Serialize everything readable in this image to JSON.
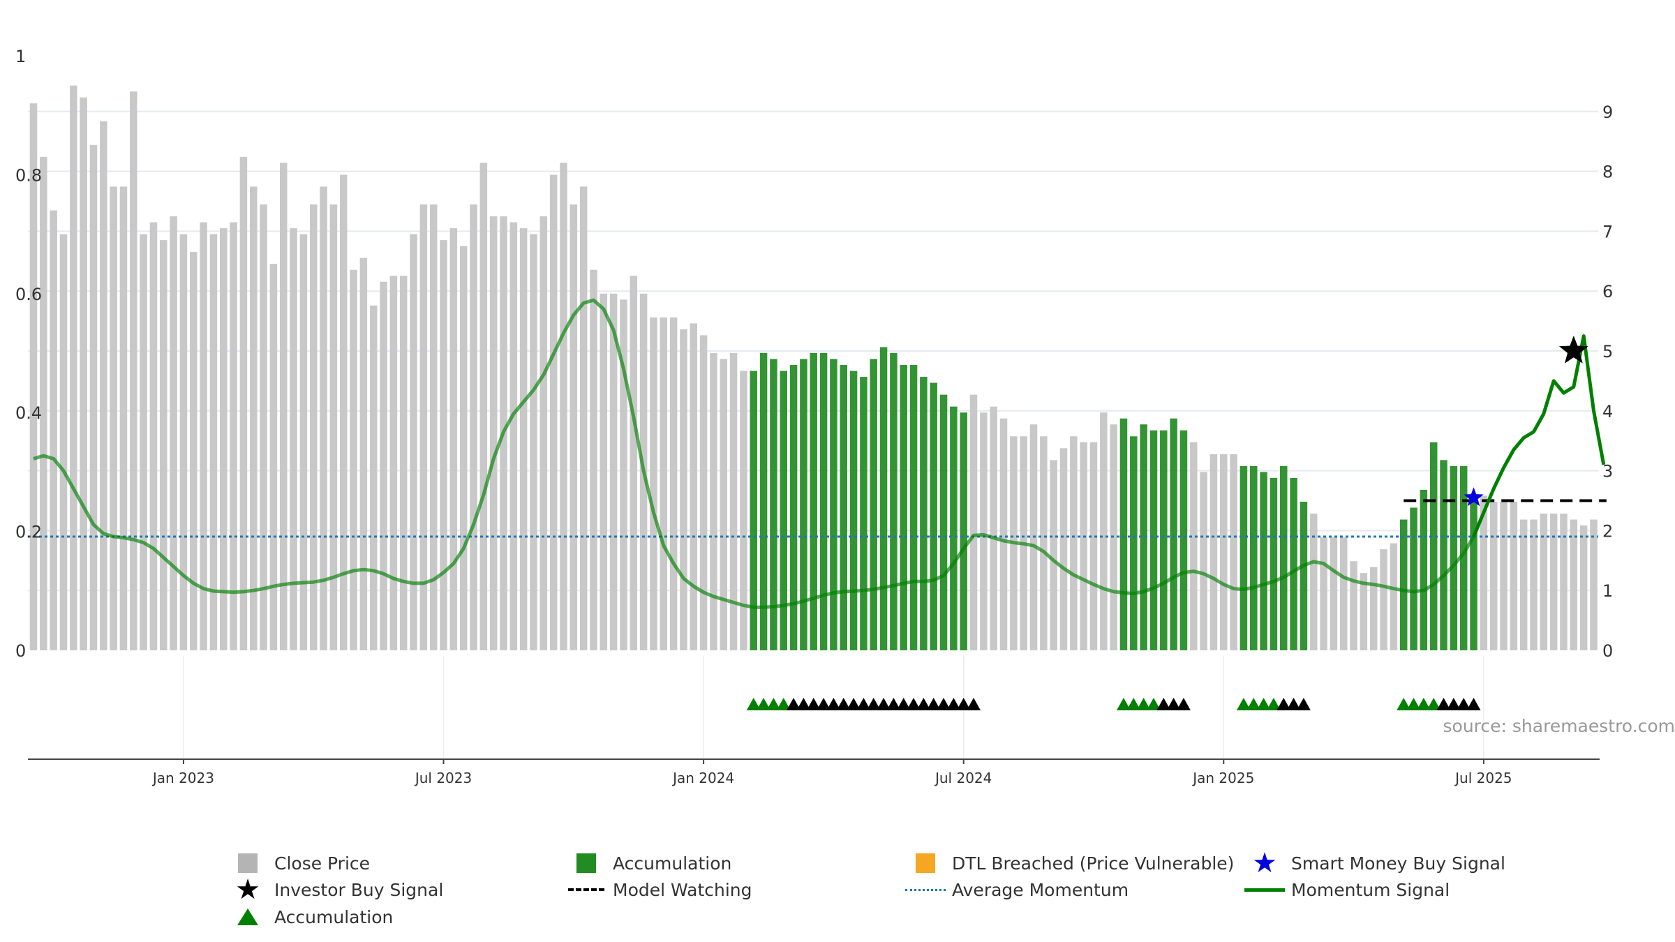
{
  "chart_data": {
    "type": "bar",
    "left_axis": {
      "ylim": [
        0,
        1
      ],
      "ticks": [
        "0",
        "0.2",
        "0.4",
        "0.6",
        "0.8",
        "1"
      ]
    },
    "right_axis": {
      "ylim": [
        0,
        9.9
      ],
      "ticks": [
        "0",
        "1",
        "2",
        "3",
        "4",
        "5",
        "6",
        "7",
        "8",
        "9"
      ]
    },
    "x_ticks": [
      {
        "label": "Jan 2023",
        "index": 15
      },
      {
        "label": "Jul 2023",
        "index": 41
      },
      {
        "label": "Jan 2024",
        "index": 67
      },
      {
        "label": "Jul 2024",
        "index": 93
      },
      {
        "label": "Jan 2025",
        "index": 119
      },
      {
        "label": "Jul 2025",
        "index": 145
      }
    ],
    "close_price": [
      0.92,
      0.83,
      0.74,
      0.7,
      0.95,
      0.93,
      0.85,
      0.89,
      0.78,
      0.78,
      0.94,
      0.7,
      0.72,
      0.69,
      0.73,
      0.7,
      0.67,
      0.72,
      0.7,
      0.71,
      0.72,
      0.83,
      0.78,
      0.75,
      0.65,
      0.82,
      0.71,
      0.7,
      0.75,
      0.78,
      0.75,
      0.8,
      0.64,
      0.66,
      0.58,
      0.62,
      0.63,
      0.63,
      0.7,
      0.75,
      0.75,
      0.69,
      0.71,
      0.68,
      0.75,
      0.82,
      0.73,
      0.73,
      0.72,
      0.71,
      0.7,
      0.73,
      0.8,
      0.82,
      0.75,
      0.78,
      0.64,
      0.6,
      0.6,
      0.59,
      0.63,
      0.6,
      0.56,
      0.56,
      0.56,
      0.54,
      0.55,
      0.53,
      0.5,
      0.49,
      0.5,
      0.47,
      0.47,
      0.5,
      0.49,
      0.47,
      0.48,
      0.49,
      0.5,
      0.5,
      0.49,
      0.48,
      0.47,
      0.46,
      0.49,
      0.51,
      0.5,
      0.48,
      0.48,
      0.46,
      0.45,
      0.43,
      0.41,
      0.4,
      0.43,
      0.4,
      0.41,
      0.39,
      0.36,
      0.36,
      0.38,
      0.36,
      0.32,
      0.34,
      0.36,
      0.35,
      0.35,
      0.4,
      0.38,
      0.39,
      0.36,
      0.38,
      0.37,
      0.37,
      0.39,
      0.37,
      0.35,
      0.3,
      0.33,
      0.33,
      0.33,
      0.31,
      0.31,
      0.3,
      0.29,
      0.31,
      0.29,
      0.25,
      0.23,
      0.19,
      0.19,
      0.19,
      0.15,
      0.13,
      0.14,
      0.17,
      0.18,
      0.22,
      0.24,
      0.27,
      0.35,
      0.32,
      0.31,
      0.31,
      0.26,
      0.26,
      0.25,
      0.25,
      0.25,
      0.22,
      0.22,
      0.23,
      0.23,
      0.23,
      0.22,
      0.21,
      0.22
    ],
    "accumulation_ranges": [
      [
        72,
        93
      ],
      [
        109,
        115
      ],
      [
        121,
        127
      ],
      [
        137,
        144
      ]
    ],
    "momentum_signal": [
      3.2,
      3.25,
      3.2,
      3.0,
      2.7,
      2.4,
      2.1,
      1.95,
      1.9,
      1.88,
      1.85,
      1.8,
      1.7,
      1.55,
      1.4,
      1.25,
      1.12,
      1.03,
      0.99,
      0.98,
      0.97,
      0.98,
      1.0,
      1.03,
      1.07,
      1.1,
      1.12,
      1.13,
      1.14,
      1.17,
      1.22,
      1.28,
      1.33,
      1.35,
      1.33,
      1.28,
      1.2,
      1.15,
      1.12,
      1.12,
      1.18,
      1.3,
      1.45,
      1.7,
      2.1,
      2.6,
      3.2,
      3.65,
      3.95,
      4.15,
      4.35,
      4.6,
      4.95,
      5.3,
      5.6,
      5.8,
      5.85,
      5.7,
      5.35,
      4.7,
      3.9,
      3.0,
      2.3,
      1.75,
      1.45,
      1.2,
      1.07,
      0.97,
      0.9,
      0.85,
      0.8,
      0.75,
      0.72,
      0.72,
      0.73,
      0.75,
      0.78,
      0.82,
      0.87,
      0.92,
      0.96,
      0.98,
      0.99,
      1.0,
      1.02,
      1.05,
      1.08,
      1.12,
      1.15,
      1.15,
      1.17,
      1.25,
      1.45,
      1.7,
      1.92,
      1.93,
      1.88,
      1.83,
      1.8,
      1.78,
      1.75,
      1.65,
      1.5,
      1.37,
      1.26,
      1.18,
      1.1,
      1.03,
      0.98,
      0.96,
      0.95,
      0.98,
      1.04,
      1.12,
      1.22,
      1.3,
      1.32,
      1.28,
      1.2,
      1.1,
      1.03,
      1.02,
      1.05,
      1.1,
      1.15,
      1.22,
      1.32,
      1.42,
      1.48,
      1.45,
      1.33,
      1.22,
      1.16,
      1.12,
      1.1,
      1.07,
      1.03,
      1.0,
      0.98,
      1.0,
      1.1,
      1.25,
      1.42,
      1.62,
      1.9,
      2.3,
      2.7,
      3.05,
      3.35,
      3.55,
      3.65,
      3.95,
      4.5,
      4.3,
      4.4,
      5.25,
      4.0,
      3.1
    ],
    "average_momentum": 1.9,
    "model_watching": {
      "level": 2.5,
      "from_index": 137,
      "to_index": 157
    },
    "accumulation_triangles": [
      {
        "start": 72,
        "green": 4,
        "black": 19
      },
      {
        "start": 109,
        "green": 4,
        "black": 3
      },
      {
        "start": 121,
        "green": 4,
        "black": 3
      },
      {
        "start": 137,
        "green": 4,
        "black": 4
      }
    ],
    "investor_buy_signal": {
      "index": 154,
      "value": 5.0
    },
    "smart_money_buy_signal": {
      "index": 144,
      "value": 2.55
    }
  },
  "source_note": "source: sharemaestro.com",
  "legend": {
    "close_price": "Close Price",
    "accumulation_bar": "Accumulation",
    "dtl_breached": "DTL Breached (Price Vulnerable)",
    "smart_money": "Smart Money Buy Signal",
    "investor_buy": "Investor Buy Signal",
    "model_watching": "Model Watching",
    "average_momentum": "Average Momentum",
    "momentum_signal": "Momentum Signal",
    "accumulation_triangle": "Accumulation"
  },
  "colors": {
    "close_price": "#c8c8c8",
    "accumulation": "#228b22",
    "dtl": "#f5a623",
    "smart_money": "#0000e0",
    "momentum": "#008000",
    "average": "#1f77b4",
    "axis": "#333333"
  }
}
